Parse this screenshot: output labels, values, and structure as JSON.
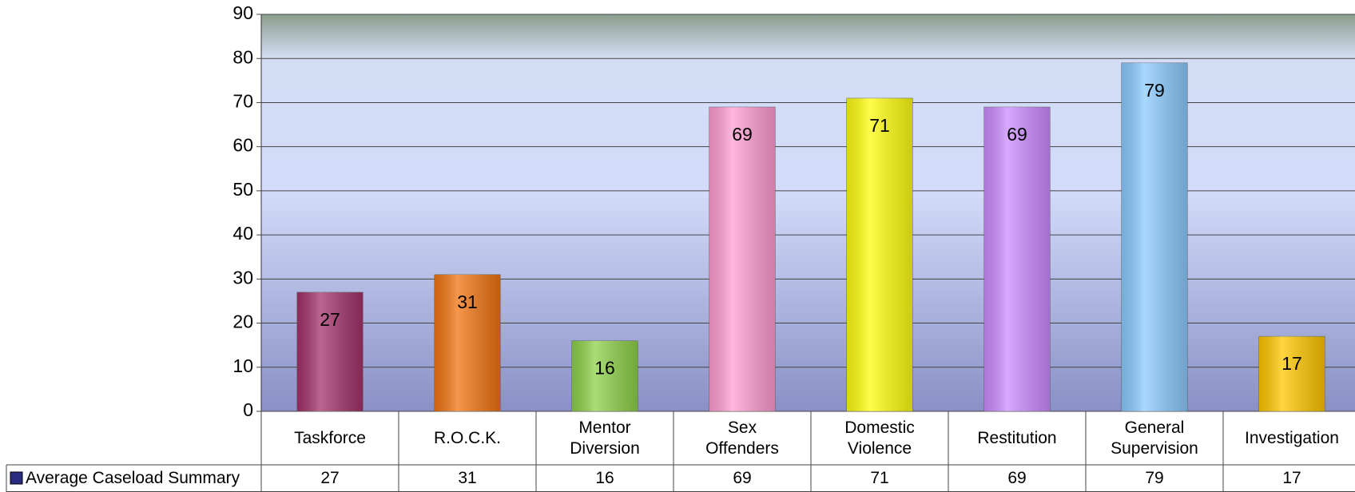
{
  "chart_data": {
    "type": "bar",
    "categories": [
      "Taskforce",
      "R.O.C.K.",
      "Mentor\nDiversion",
      "Sex\nOffenders",
      "Domestic\nViolence",
      "Restitution",
      "General\nSupervision",
      "Investigation"
    ],
    "series": [
      {
        "name": "Average Caseload Summary",
        "color": "#2a2a80",
        "values": [
          27,
          31,
          16,
          69,
          71,
          69,
          79,
          17
        ]
      }
    ],
    "colors": [
      "#a3336b",
      "#f27512",
      "#8fd24a",
      "#ff9ed2",
      "#ffff10",
      "#cc8cff",
      "#8ccbff",
      "#ffc800"
    ],
    "ylim": [
      0,
      90
    ],
    "yticks": [
      0,
      10,
      20,
      30,
      40,
      50,
      60,
      70,
      80,
      90
    ],
    "grid": true
  }
}
